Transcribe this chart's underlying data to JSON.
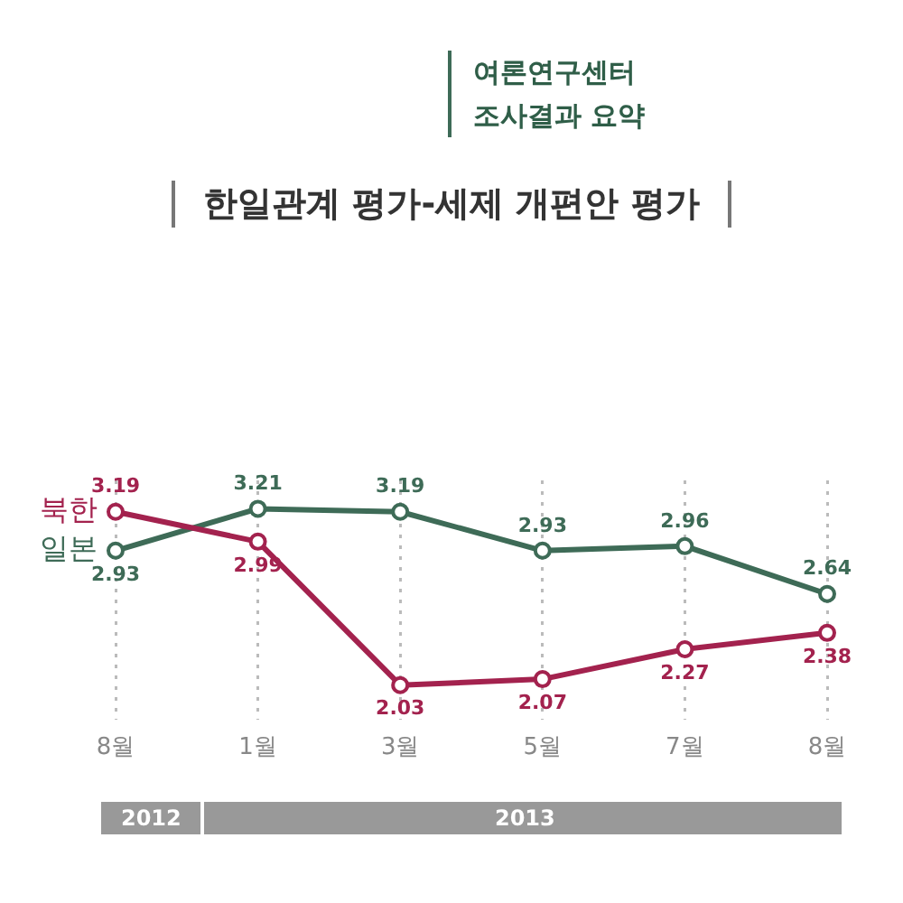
{
  "chart_data": {
    "type": "line",
    "title": "한일관계 평가-세제 개편안 평가",
    "subtitle": "여론연구센터",
    "annotations": [
      "조사결과 요약",
      "2012",
      "2013"
    ],
    "categories": [
      "8월",
      "1월",
      "3월",
      "5월",
      "7월",
      "8월"
    ],
    "series": [
      {
        "name": "북한",
        "color": "#a3224e",
        "values": [
          3.19,
          2.99,
          2.03,
          2.07,
          2.27,
          2.38
        ]
      },
      {
        "name": "일본",
        "color": "#3e6b57",
        "values": [
          2.93,
          3.21,
          3.19,
          2.93,
          2.96,
          2.64
        ]
      }
    ],
    "data_labels": true,
    "grid": "x",
    "marker": "circle",
    "line_style": "solid"
  }
}
